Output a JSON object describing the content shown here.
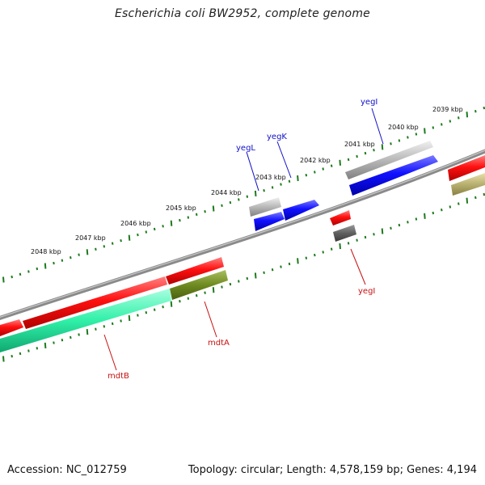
{
  "title": "Escherichia coli BW2952, complete genome",
  "footer": {
    "accession": "Accession: NC_012759",
    "summary": "Topology: circular; Length: 4,578,159 bp; Genes: 4,194"
  },
  "scale_labels": [
    "2039 kbp",
    "2040 kbp",
    "2041 kbp",
    "2042 kbp",
    "2043 kbp",
    "2044 kbp",
    "2045 kbp",
    "2046 kbp",
    "2047 kbp",
    "2048 kbp"
  ],
  "gene_labels": {
    "yegI_top": "yegI",
    "yegK": "yegK",
    "yegL": "yegL",
    "mdtA": "mdtA",
    "mdtB": "mdtB",
    "yegI_bottom": "yegI"
  },
  "colors": {
    "backbone": "#7a7a7a",
    "ticks": "#1e7a1e",
    "forward_label": "#1010c8",
    "reverse_label": "#c81010",
    "cds_red": "#e01010",
    "cds_blue": "#1010e0",
    "cds_grey": "#a0a0a0",
    "cds_green": "#30e8a0",
    "cds_olive": "#6e8a20",
    "cds_khaki": "#b8b070"
  }
}
